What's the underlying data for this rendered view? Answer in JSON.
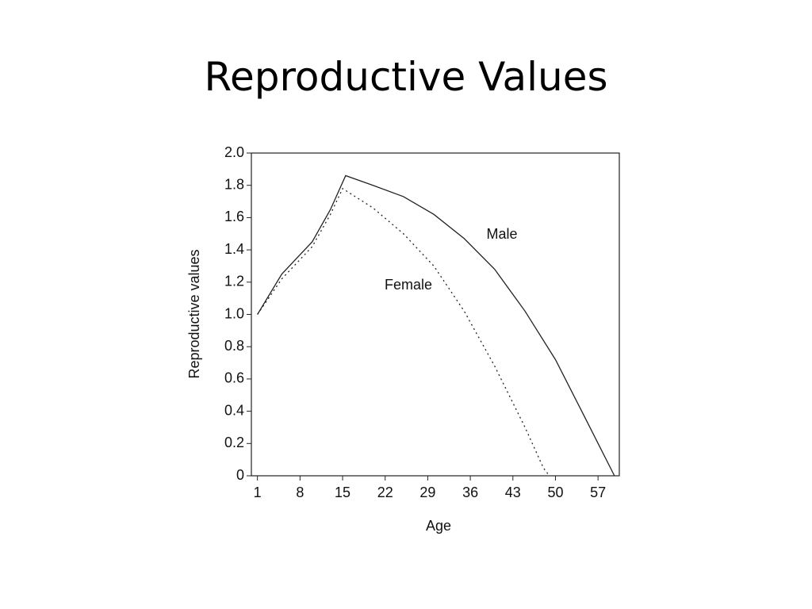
{
  "chart_data": {
    "type": "line",
    "title": "Reproductive Values",
    "xlabel": "Age",
    "ylabel": "Reproductive values",
    "xlim": [
      0,
      60.5
    ],
    "xticks": [
      1,
      8,
      15,
      22,
      29,
      36,
      43,
      50,
      57
    ],
    "ylim": [
      0,
      2.0
    ],
    "yticks": [
      0,
      0.2,
      0.4,
      0.6,
      0.8,
      {
        "value": 1,
        "label": "1.0"
      },
      1.2,
      1.4,
      1.6,
      1.8,
      {
        "value": 2,
        "label": "2.0"
      }
    ],
    "grid": false,
    "series": [
      {
        "name": "Male",
        "color": "#222222",
        "dash": "none",
        "x": [
          1,
          5,
          10,
          13,
          15.5,
          20,
          25,
          30,
          35,
          40,
          45,
          50,
          55,
          59.7
        ],
        "values": [
          1.0,
          1.25,
          1.45,
          1.65,
          1.86,
          1.8,
          1.73,
          1.62,
          1.47,
          1.28,
          1.02,
          0.72,
          0.35,
          0
        ]
      },
      {
        "name": "Female",
        "color": "#222222",
        "dash": "2 4",
        "x": [
          1,
          5,
          10,
          13,
          15,
          20,
          25,
          30,
          35,
          40,
          45,
          48,
          49
        ],
        "values": [
          1.0,
          1.22,
          1.42,
          1.62,
          1.78,
          1.66,
          1.5,
          1.3,
          1.02,
          0.68,
          0.3,
          0.05,
          0
        ]
      }
    ]
  }
}
